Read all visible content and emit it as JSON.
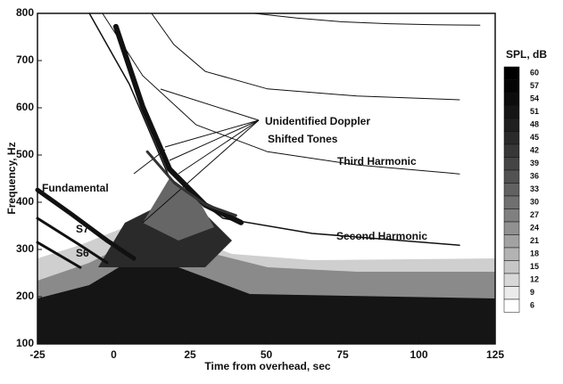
{
  "chart_data": {
    "type": "spectrogram",
    "xlabel": "Time from overhead, sec",
    "ylabel": "Frequency, Hz",
    "xlim": [
      -25,
      125
    ],
    "ylim": [
      100,
      800
    ],
    "xticks": [
      -25,
      0,
      25,
      50,
      75,
      100,
      125
    ],
    "yticks": [
      100,
      200,
      300,
      400,
      500,
      600,
      700,
      800
    ],
    "colorbar": {
      "label": "SPL, dB",
      "clim": [
        6,
        60
      ],
      "ticks": [
        60,
        57,
        54,
        51,
        48,
        45,
        42,
        39,
        36,
        33,
        30,
        27,
        24,
        21,
        18,
        15,
        12,
        9,
        6
      ]
    },
    "annotations": [
      "Unidentified Doppler",
      "Shifted Tones",
      "Third Harmonic",
      "Second Harmonic",
      "Fundamental",
      "S7",
      "S6"
    ],
    "series": [
      {
        "color": "#111111",
        "width": 1,
        "x": [
          46,
          60,
          75,
          90,
          105,
          120
        ],
        "values": [
          800,
          790,
          782,
          778,
          776,
          775
        ]
      },
      {
        "color": "#111111",
        "width": 1,
        "x": [
          12.4,
          19.7,
          30,
          50.4,
          79.7,
          113.3
        ],
        "values": [
          800,
          734,
          677,
          640,
          625,
          617
        ]
      },
      {
        "color": "#111111",
        "width": 1,
        "x": [
          -3.7,
          9.5,
          27,
          50.4,
          79.7,
          113.3
        ],
        "values": [
          800,
          668,
          564,
          507,
          479,
          460
        ]
      },
      {
        "color": "#111111",
        "width": 1.5,
        "x": [
          -8,
          5.1,
          18.3,
          35.8,
          65,
          113.3
        ],
        "values": [
          800,
          650,
          451,
          366,
          334,
          309
        ]
      },
      {
        "color": "#111111",
        "width": 5,
        "x": [
          -25,
          -13.9,
          -2.2,
          6.6
        ],
        "values": [
          426,
          375,
          319,
          281
        ]
      },
      {
        "color": "#111111",
        "width": 3,
        "x": [
          -25,
          -11,
          -2.2
        ],
        "values": [
          366,
          309,
          272
        ]
      },
      {
        "color": "#111111",
        "width": 3,
        "x": [
          -25,
          -11
        ],
        "values": [
          315,
          262
        ]
      },
      {
        "color": "#111111",
        "width": 6,
        "x": [
          0.7,
          9.5,
          18.3,
          30,
          41.7
        ],
        "values": [
          772,
          602,
          470,
          394,
          357
        ]
      },
      {
        "color": "#333333",
        "width": 3,
        "x": [
          11,
          20,
          30,
          40
        ],
        "values": [
          507,
          440,
          395,
          372
        ]
      }
    ]
  }
}
